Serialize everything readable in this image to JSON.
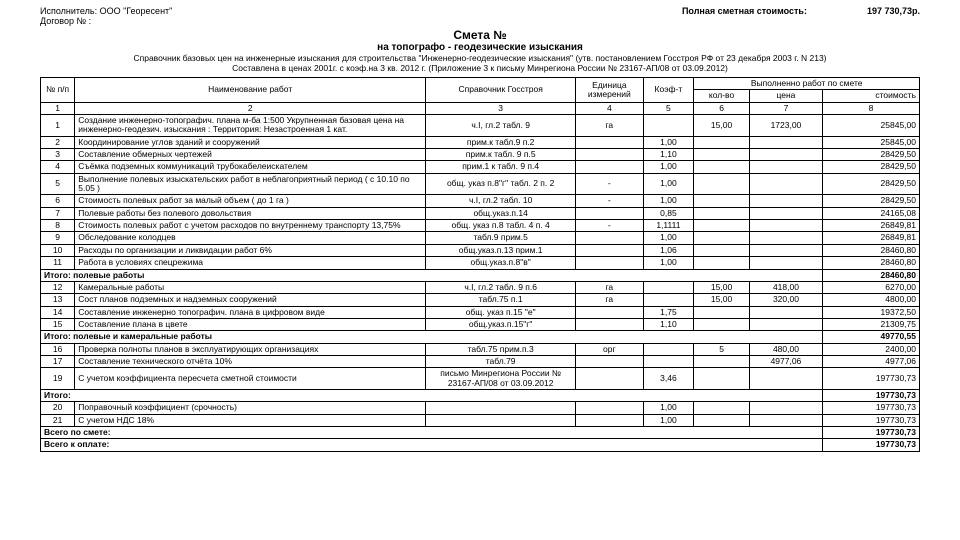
{
  "header": {
    "executor_label": "Исполнитель: ООО \"Георесент\"",
    "contract_label": "Договор № :",
    "total_label": "Полная сметная стоимость:",
    "total_value": "197 730,73р."
  },
  "title": {
    "main": "Смета №",
    "sub": "на топографо - геодезические  изыскания",
    "note1": "Справочник базовых цен на инженерные изыскания для строительства \"Инженерно-геодезические изыскания\" (утв. постановлением Госстроя РФ от 23 декабря 2003 г. N 213)",
    "note2": "Составлена в ценах 2001г. с коэф.на 3 кв. 2012 г. (Приложение 3 к письму Минрегиона России № 23167-АП/08 от 03.09.2012)"
  },
  "thead": {
    "num": "№ п/п",
    "name": "Наименование работ",
    "ref": "Справочник Госстроя",
    "unit": "Единица измерений",
    "coef": "Коэф-т",
    "done": "Выполненно работ по смете",
    "qty": "кол-во",
    "price": "цена",
    "cost": "стоимость",
    "c1": "1",
    "c2": "2",
    "c3": "3",
    "c4": "4",
    "c5": "5",
    "c6": "6",
    "c7": "7",
    "c8": "8"
  },
  "rows": [
    {
      "n": "1",
      "name": "Создание инженерно-топографич. плана м-ба 1:500  Укрупненная базовая цена  на инженерно-геодезич. изыскания :  Территория: Незастроенная 1 кат.",
      "ref": "ч.I, гл.2 табл. 9",
      "unit": "га",
      "coef": "",
      "qty": "15,00",
      "price": "1723,00",
      "cost": "25845,00"
    },
    {
      "n": "2",
      "name": "Координирование углов зданий и сооружений",
      "ref": "прим.к табл.9 п.2",
      "unit": "",
      "coef": "1,00",
      "qty": "",
      "price": "",
      "cost": "25845,00"
    },
    {
      "n": "3",
      "name": "Составление обмерных чертежей",
      "ref": "прим.к табл. 9 п.5",
      "unit": "",
      "coef": "1,10",
      "qty": "",
      "price": "",
      "cost": "28429,50"
    },
    {
      "n": "4",
      "name": "Съёмка подземных коммуникаций  трубокабелеискателем",
      "ref": "прим.1 к табл. 9 п.4",
      "unit": "",
      "coef": "1,00",
      "qty": "",
      "price": "",
      "cost": "28429,50"
    },
    {
      "n": "5",
      "name": "Выполнение полевых изыскательских работ в неблагоприятный период ( с 10.10 по 5.05 )",
      "ref": "общ. указ п.8\"г\" табл. 2 п. 2",
      "unit": "-",
      "coef": "1,00",
      "qty": "",
      "price": "",
      "cost": "28429,50"
    },
    {
      "n": "6",
      "name": "Стоимость полевых работ за малый объем ( до 1 га )",
      "ref": "ч.I, гл.2 табл. 10",
      "unit": "-",
      "coef": "1,00",
      "qty": "",
      "price": "",
      "cost": "28429,50"
    },
    {
      "n": "7",
      "name": "Полевые работы без полевого довольствия",
      "ref": "общ.указ.п.14",
      "unit": "",
      "coef": "0,85",
      "qty": "",
      "price": "",
      "cost": "24165,08"
    },
    {
      "n": "8",
      "name": "Стоимость полевых работ с учетом расходов по  внутреннему транспорту   13,75%",
      "ref": "общ. указ п.8 табл. 4  п. 4",
      "unit": "-",
      "coef": "1,1111",
      "qty": "",
      "price": "",
      "cost": "26849,81"
    },
    {
      "n": "9",
      "name": "Обследование колодцев",
      "ref": "табл.9 прим.5",
      "unit": "",
      "coef": "1,00",
      "qty": "",
      "price": "",
      "cost": "26849,81"
    },
    {
      "n": "10",
      "name": "Расходы по организации и ликвидации работ   6%",
      "ref": "общ.указ.п.13 прим.1",
      "unit": "",
      "coef": "1,06",
      "qty": "",
      "price": "",
      "cost": "28460,80"
    },
    {
      "n": "11",
      "name": "Работа в условиях спецрежима",
      "ref": "общ.указ.п.8\"в\"",
      "unit": "",
      "coef": "1,00",
      "qty": "",
      "price": "",
      "cost": "28460,80"
    }
  ],
  "section1": {
    "label": "Итого: полевые работы",
    "cost": "28460,80"
  },
  "rows2": [
    {
      "n": "12",
      "name": "Камеральные работы",
      "ref": "ч.I, гл.2 табл. 9 п.6",
      "unit": "га",
      "coef": "",
      "qty": "15,00",
      "price": "418,00",
      "cost": "6270,00"
    },
    {
      "n": "13",
      "name": "Сост планов подземных и надземных сооружений",
      "ref": "табл.75 п.1",
      "unit": "га",
      "coef": "",
      "qty": "15,00",
      "price": "320,00",
      "cost": "4800,00"
    },
    {
      "n": "14",
      "name": "Составление инженерно топографич. плана в  цифровом виде",
      "ref": "общ. указ п.15 \"е\"",
      "unit": "",
      "coef": "1,75",
      "qty": "",
      "price": "",
      "cost": "19372,50"
    },
    {
      "n": "15",
      "name": "Составление  плана в  цвете",
      "ref": "общ.указ.п.15\"г\"",
      "unit": "",
      "coef": "1,10",
      "qty": "",
      "price": "",
      "cost": "21309,75"
    }
  ],
  "section2": {
    "label": "Итого: полевые и камеральные работы",
    "cost": "49770,55"
  },
  "rows3": [
    {
      "n": "16",
      "name": "Проверка полноты планов в эксплуатирующих организациях",
      "ref": "табл.75 прим.п.3",
      "unit": "орг",
      "coef": "",
      "qty": "5",
      "price": "480,00",
      "cost": "2400,00"
    },
    {
      "n": "17",
      "name": "Составление технического отчёта 10%",
      "ref": "табл.79",
      "unit": "",
      "coef": "",
      "qty": "",
      "price": "4977,06",
      "cost": "4977,06"
    },
    {
      "n": "19",
      "name": "С учетом коэффициента пересчета сметной стоимости",
      "ref": "письмо Минрегиона России № 23167-АП/08 от 03.09.2012",
      "unit": "",
      "coef": "3,46",
      "qty": "",
      "price": "",
      "cost": "197730,73"
    }
  ],
  "section3": {
    "label": "Итого:",
    "cost": "197730,73"
  },
  "rows4": [
    {
      "n": "20",
      "name": "Поправочный коэффициент (срочность)",
      "ref": "",
      "unit": "",
      "coef": "1,00",
      "qty": "",
      "price": "",
      "cost": "197730,73"
    },
    {
      "n": "21",
      "name": "С учетом НДС 18%",
      "ref": "",
      "unit": "",
      "coef": "1,00",
      "qty": "",
      "price": "",
      "cost": "197730,73"
    }
  ],
  "footer1": {
    "label": "Всего по смете:",
    "cost": "197730,73"
  },
  "footer2": {
    "label": "Всего к оплате:",
    "cost": "197730,73"
  }
}
